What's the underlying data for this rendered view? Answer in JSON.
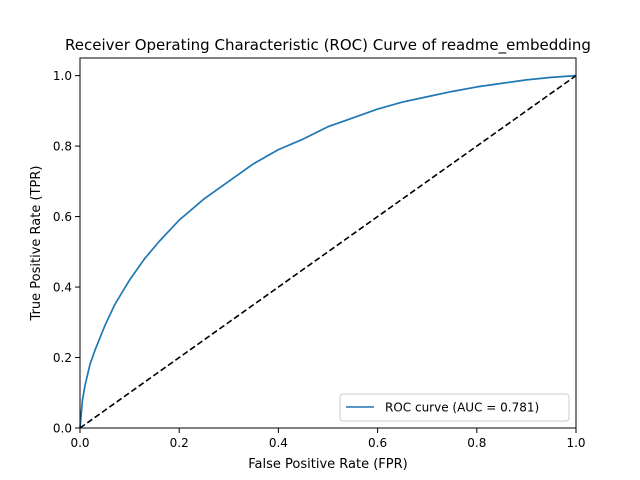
{
  "chart_data": {
    "type": "line",
    "title": "Receiver Operating Characteristic (ROC) Curve of readme_embedding",
    "xlabel": "False Positive Rate (FPR)",
    "ylabel": "True Positive Rate (TPR)",
    "xlim": [
      0.0,
      1.0
    ],
    "ylim": [
      0.0,
      1.05
    ],
    "xticks": [
      0.0,
      0.2,
      0.4,
      0.6,
      0.8,
      1.0
    ],
    "yticks": [
      0.0,
      0.2,
      0.4,
      0.6,
      0.8,
      1.0
    ],
    "xtick_labels": [
      "0.0",
      "0.2",
      "0.4",
      "0.6",
      "0.8",
      "1.0"
    ],
    "ytick_labels": [
      "0.0",
      "0.2",
      "0.4",
      "0.6",
      "0.8",
      "1.0"
    ],
    "grid": false,
    "legend_position": "lower-right",
    "series": [
      {
        "name": "ROC curve (AUC = 0.781)",
        "color": "#1f77b4",
        "style": "solid",
        "x": [
          0.0,
          0.005,
          0.01,
          0.02,
          0.03,
          0.05,
          0.07,
          0.1,
          0.13,
          0.16,
          0.2,
          0.25,
          0.3,
          0.35,
          0.4,
          0.45,
          0.5,
          0.55,
          0.6,
          0.65,
          0.7,
          0.75,
          0.8,
          0.85,
          0.9,
          0.95,
          1.0
        ],
        "y": [
          0.0,
          0.08,
          0.12,
          0.18,
          0.22,
          0.29,
          0.35,
          0.42,
          0.48,
          0.53,
          0.59,
          0.65,
          0.7,
          0.75,
          0.79,
          0.82,
          0.855,
          0.88,
          0.905,
          0.925,
          0.94,
          0.955,
          0.968,
          0.978,
          0.988,
          0.995,
          1.0
        ]
      },
      {
        "color": "#000000",
        "style": "dashed",
        "x": [
          0.0,
          1.0
        ],
        "y": [
          0.0,
          1.0
        ]
      }
    ]
  }
}
